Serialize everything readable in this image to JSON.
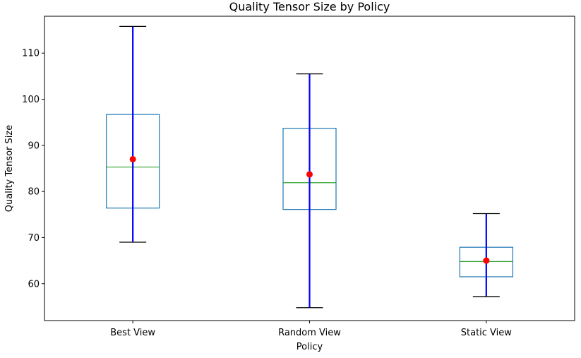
{
  "chart_data": {
    "type": "box",
    "title": "Quality Tensor Size by Policy",
    "xlabel": "Policy",
    "ylabel": "Quality Tensor Size",
    "ylim": [
      52,
      118
    ],
    "yticks": [
      60,
      70,
      80,
      90,
      100,
      110
    ],
    "grid": false,
    "categories": [
      "Best View",
      "Random View",
      "Static View"
    ],
    "boxes": [
      {
        "category": "Best View",
        "min": 69.0,
        "q1": 76.4,
        "median": 85.3,
        "q3": 96.7,
        "max": 115.8,
        "mean": 87.0
      },
      {
        "category": "Random View",
        "min": 54.8,
        "q1": 76.1,
        "median": 81.9,
        "q3": 93.7,
        "max": 105.5,
        "mean": 83.7
      },
      {
        "category": "Static View",
        "min": 57.2,
        "q1": 61.5,
        "median": 64.8,
        "q3": 67.9,
        "max": 75.2,
        "mean": 65.0
      }
    ],
    "colors": {
      "box": "#1f77b4",
      "median": "#2ca02c",
      "whisker": "#0000ff",
      "cap": "#000000",
      "mean": "#ff0000"
    }
  }
}
